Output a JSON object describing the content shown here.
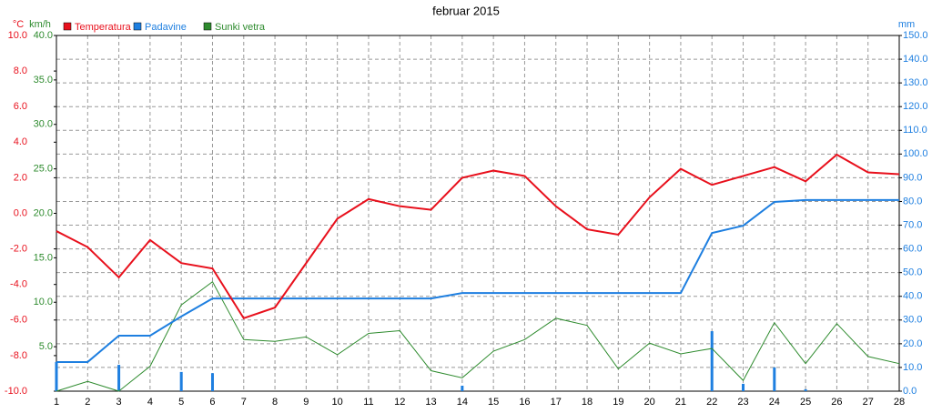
{
  "chart_data": {
    "type": "line",
    "title": "februar 2015",
    "units": {
      "y": "°C",
      "y3": "km/h",
      "y2": "mm"
    },
    "x": [
      1,
      2,
      3,
      4,
      5,
      6,
      7,
      8,
      9,
      10,
      11,
      12,
      13,
      14,
      15,
      16,
      17,
      18,
      19,
      20,
      21,
      22,
      23,
      24,
      25,
      26,
      27,
      28
    ],
    "xlim": [
      1,
      28
    ],
    "xticks": [
      1,
      2,
      3,
      4,
      5,
      6,
      7,
      8,
      9,
      10,
      11,
      12,
      13,
      14,
      15,
      16,
      17,
      18,
      19,
      20,
      21,
      22,
      23,
      24,
      25,
      26,
      27,
      28
    ],
    "ylim": [
      -10,
      10
    ],
    "yticks": [
      {
        "value": -10,
        "label": "-10.0"
      },
      {
        "value": -8,
        "label": "-8.0"
      },
      {
        "value": -6,
        "label": "-6.0"
      },
      {
        "value": -4,
        "label": "-4.0"
      },
      {
        "value": -2,
        "label": "-2.0"
      },
      {
        "value": 0,
        "label": "0.0"
      },
      {
        "value": 2,
        "label": "2.0"
      },
      {
        "value": 4,
        "label": "4.0"
      },
      {
        "value": 6,
        "label": "6.0"
      },
      {
        "value": 8,
        "label": "8.0"
      },
      {
        "value": 10,
        "label": "10.0"
      }
    ],
    "y3lim": [
      0,
      40
    ],
    "y3ticks": [
      {
        "value": 5,
        "label": "5.0"
      },
      {
        "value": 10,
        "label": "10.0"
      },
      {
        "value": 15,
        "label": "15.0"
      },
      {
        "value": 20,
        "label": "20.0"
      },
      {
        "value": 25,
        "label": "25.0"
      },
      {
        "value": 30,
        "label": "30.0"
      },
      {
        "value": 35,
        "label": "35.0"
      },
      {
        "value": 40,
        "label": "40.0"
      }
    ],
    "y2lim": [
      0,
      150
    ],
    "y2ticks": [
      {
        "value": 0,
        "label": "0.0"
      },
      {
        "value": 10,
        "label": "10.0"
      },
      {
        "value": 20,
        "label": "20.0"
      },
      {
        "value": 30,
        "label": "30.0"
      },
      {
        "value": 40,
        "label": "40.0"
      },
      {
        "value": 50,
        "label": "50.0"
      },
      {
        "value": 60,
        "label": "60.0"
      },
      {
        "value": 70,
        "label": "70.0"
      },
      {
        "value": 80,
        "label": "80.0"
      },
      {
        "value": 90,
        "label": "90.0"
      },
      {
        "value": 100,
        "label": "100.0"
      },
      {
        "value": 110,
        "label": "110.0"
      },
      {
        "value": 120,
        "label": "120.0"
      },
      {
        "value": 130,
        "label": "130.0"
      },
      {
        "value": 140,
        "label": "140.0"
      },
      {
        "value": 150,
        "label": "150.0"
      }
    ],
    "grid": true,
    "legend": "top-left",
    "series": [
      {
        "name": "Temperatura",
        "color": "#e8101c",
        "axis": "y",
        "width": 2,
        "values": [
          -1.0,
          -1.9,
          -3.6,
          -1.5,
          -2.8,
          -3.1,
          -5.9,
          -5.3,
          -2.8,
          -0.3,
          0.8,
          0.4,
          0.2,
          2.0,
          2.4,
          2.1,
          0.4,
          -0.9,
          -1.2,
          0.9,
          2.5,
          1.6,
          2.1,
          2.6,
          1.8,
          3.3,
          2.3,
          2.2
        ]
      },
      {
        "name": "Padavine",
        "color": "#1e7fe0",
        "axis": "y2",
        "width": 2,
        "values": [
          12.3,
          12.3,
          23.4,
          23.4,
          31.5,
          39.1,
          39.1,
          39.1,
          39.1,
          39.1,
          39.1,
          39.1,
          39.1,
          41.4,
          41.4,
          41.4,
          41.4,
          41.4,
          41.4,
          41.4,
          41.4,
          66.7,
          69.8,
          79.8,
          80.6,
          80.6,
          80.6,
          80.6
        ]
      },
      {
        "name": "Sunki vetra",
        "color": "#2e8b2e",
        "axis": "y3",
        "width": 1,
        "values": [
          0,
          1.1,
          0,
          2.8,
          9.7,
          12.3,
          5.8,
          5.6,
          6.1,
          4.1,
          6.5,
          6.8,
          2.3,
          1.5,
          4.5,
          5.8,
          8.2,
          7.4,
          2.5,
          5.4,
          4.2,
          4.8,
          1.2,
          7.7,
          3.1,
          7.6,
          3.9,
          3.1
        ]
      }
    ],
    "daily_precipitation": {
      "color": "#1e7fe0",
      "axis": "y2",
      "values": [
        12.3,
        0,
        11.1,
        0,
        8.1,
        7.6,
        0,
        0,
        0,
        0,
        0,
        0,
        0,
        2.3,
        0,
        0,
        0,
        0,
        0,
        0,
        0,
        25.3,
        3.1,
        10.0,
        0.8,
        0,
        0,
        0
      ]
    }
  }
}
